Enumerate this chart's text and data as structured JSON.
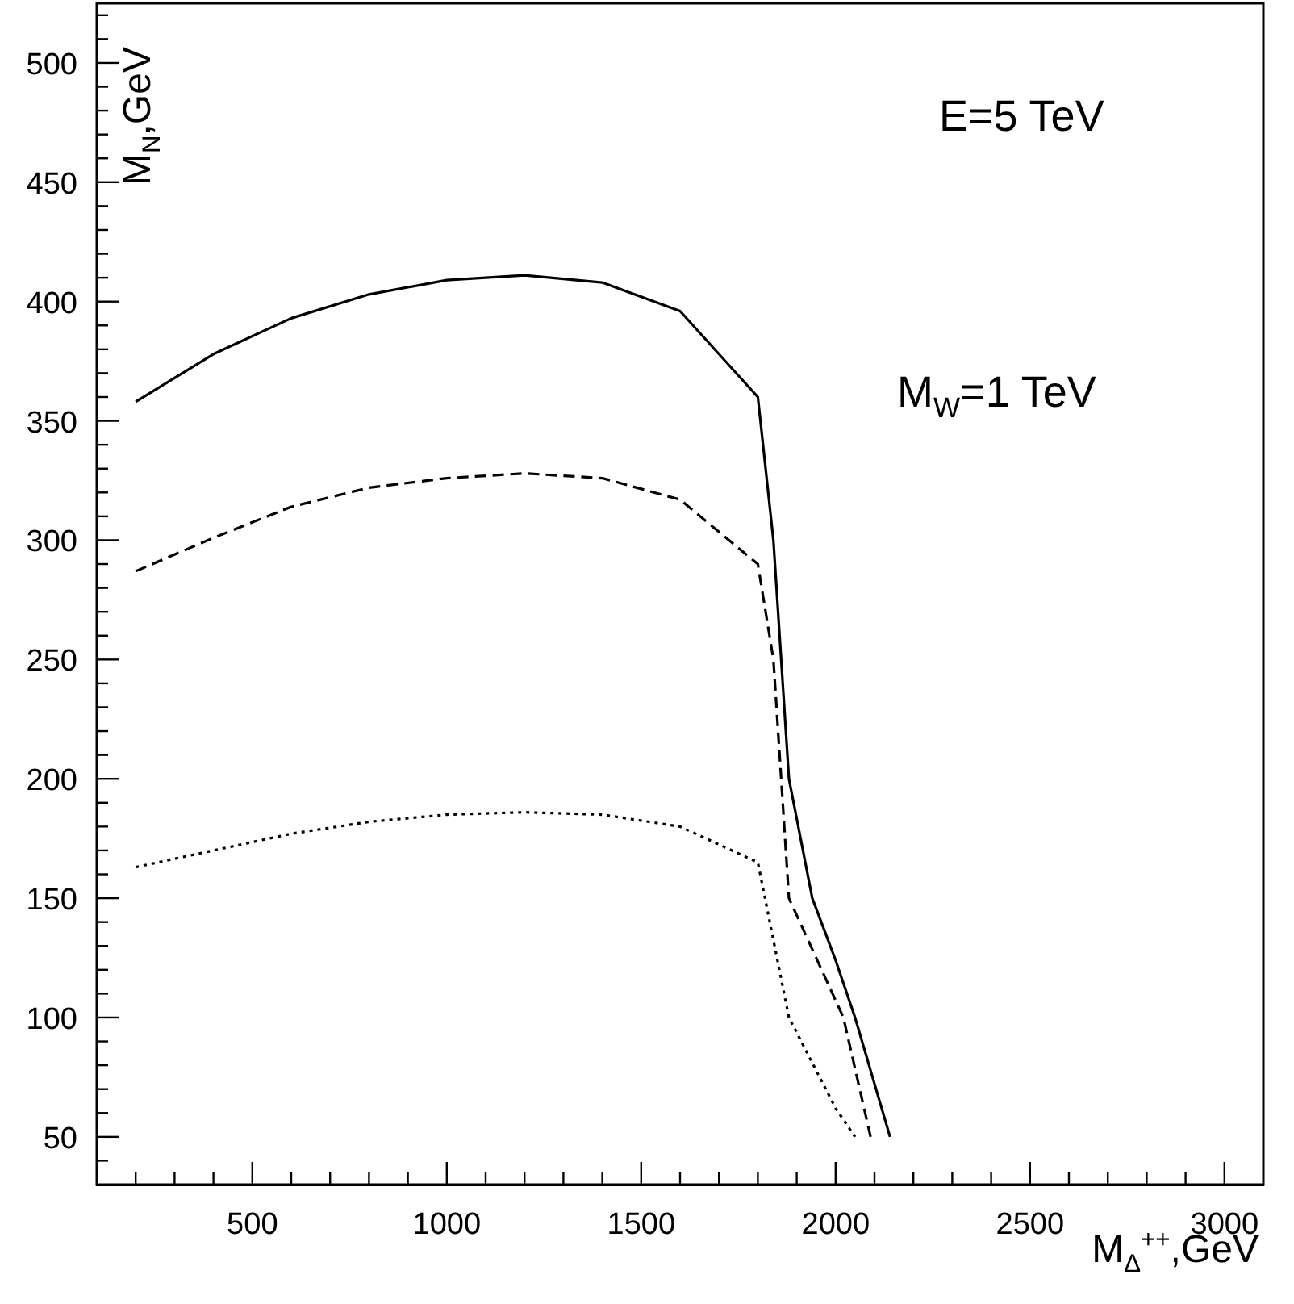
{
  "chart_data": {
    "type": "line",
    "xlabel": "M$_{Δ}$$^{++}$,GeV",
    "ylabel": "M$_{N}$,GeV",
    "annotations": [
      "E=5 TeV",
      "M$_{W}$=1 TeV"
    ],
    "xlim": [
      100,
      3100
    ],
    "ylim": [
      30,
      525
    ],
    "xticks": [
      {
        "value": 200,
        "label": null
      },
      {
        "value": 300,
        "label": null
      },
      {
        "value": 400,
        "label": null
      },
      500,
      {
        "value": 600,
        "label": null
      },
      {
        "value": 700,
        "label": null
      },
      {
        "value": 800,
        "label": null
      },
      {
        "value": 900,
        "label": null
      },
      1000,
      {
        "value": 1100,
        "label": null
      },
      {
        "value": 1200,
        "label": null
      },
      {
        "value": 1300,
        "label": null
      },
      {
        "value": 1400,
        "label": null
      },
      1500,
      {
        "value": 1600,
        "label": null
      },
      {
        "value": 1700,
        "label": null
      },
      {
        "value": 1800,
        "label": null
      },
      {
        "value": 1900,
        "label": null
      },
      2000,
      {
        "value": 2100,
        "label": null
      },
      {
        "value": 2200,
        "label": null
      },
      {
        "value": 2300,
        "label": null
      },
      {
        "value": 2400,
        "label": null
      },
      2500,
      {
        "value": 2600,
        "label": null
      },
      {
        "value": 2700,
        "label": null
      },
      {
        "value": 2800,
        "label": null
      },
      {
        "value": 2900,
        "label": null
      },
      3000
    ],
    "yticks": [
      {
        "value": 40,
        "label": null
      },
      50,
      {
        "value": 60,
        "label": null
      },
      {
        "value": 70,
        "label": null
      },
      {
        "value": 80,
        "label": null
      },
      {
        "value": 90,
        "label": null
      },
      100,
      {
        "value": 110,
        "label": null
      },
      {
        "value": 120,
        "label": null
      },
      {
        "value": 130,
        "label": null
      },
      {
        "value": 140,
        "label": null
      },
      150,
      {
        "value": 160,
        "label": null
      },
      {
        "value": 170,
        "label": null
      },
      {
        "value": 180,
        "label": null
      },
      {
        "value": 190,
        "label": null
      },
      200,
      {
        "value": 210,
        "label": null
      },
      {
        "value": 220,
        "label": null
      },
      {
        "value": 230,
        "label": null
      },
      {
        "value": 240,
        "label": null
      },
      250,
      {
        "value": 260,
        "label": null
      },
      {
        "value": 270,
        "label": null
      },
      {
        "value": 280,
        "label": null
      },
      {
        "value": 290,
        "label": null
      },
      300,
      {
        "value": 310,
        "label": null
      },
      {
        "value": 320,
        "label": null
      },
      {
        "value": 330,
        "label": null
      },
      {
        "value": 340,
        "label": null
      },
      350,
      {
        "value": 360,
        "label": null
      },
      {
        "value": 370,
        "label": null
      },
      {
        "value": 380,
        "label": null
      },
      {
        "value": 390,
        "label": null
      },
      400,
      {
        "value": 410,
        "label": null
      },
      {
        "value": 420,
        "label": null
      },
      {
        "value": 430,
        "label": null
      },
      {
        "value": 440,
        "label": null
      },
      450,
      {
        "value": 460,
        "label": null
      },
      {
        "value": 470,
        "label": null
      },
      {
        "value": 480,
        "label": null
      },
      {
        "value": 490,
        "label": null
      },
      500,
      {
        "value": 510,
        "label": null
      },
      {
        "value": 520,
        "label": null
      }
    ],
    "grid": false,
    "legend": false,
    "marker": "none",
    "series": [
      {
        "color": "#000000",
        "line_style": "solid",
        "x": [
          200,
          400,
          600,
          800,
          1000,
          1200,
          1400,
          1600,
          1800,
          1840,
          1880,
          1940,
          2000,
          2050,
          2140
        ],
        "values": [
          358,
          378,
          393,
          403,
          409,
          411,
          408,
          396,
          360,
          300,
          200,
          150,
          124,
          100,
          50
        ]
      },
      {
        "color": "#000000",
        "line_style": "dashed",
        "x": [
          200,
          400,
          600,
          800,
          1000,
          1200,
          1400,
          1600,
          1800,
          1840,
          1880,
          2020,
          2090
        ],
        "values": [
          287,
          301,
          314,
          322,
          326,
          328,
          326,
          317,
          290,
          250,
          150,
          100,
          50
        ]
      },
      {
        "color": "#000000",
        "line_style": "dotted",
        "x": [
          200,
          400,
          600,
          800,
          1000,
          1200,
          1400,
          1600,
          1800,
          1880,
          2000,
          2050
        ],
        "values": [
          163,
          170,
          177,
          182,
          185,
          186,
          185,
          180,
          165,
          100,
          62,
          50
        ]
      }
    ]
  }
}
